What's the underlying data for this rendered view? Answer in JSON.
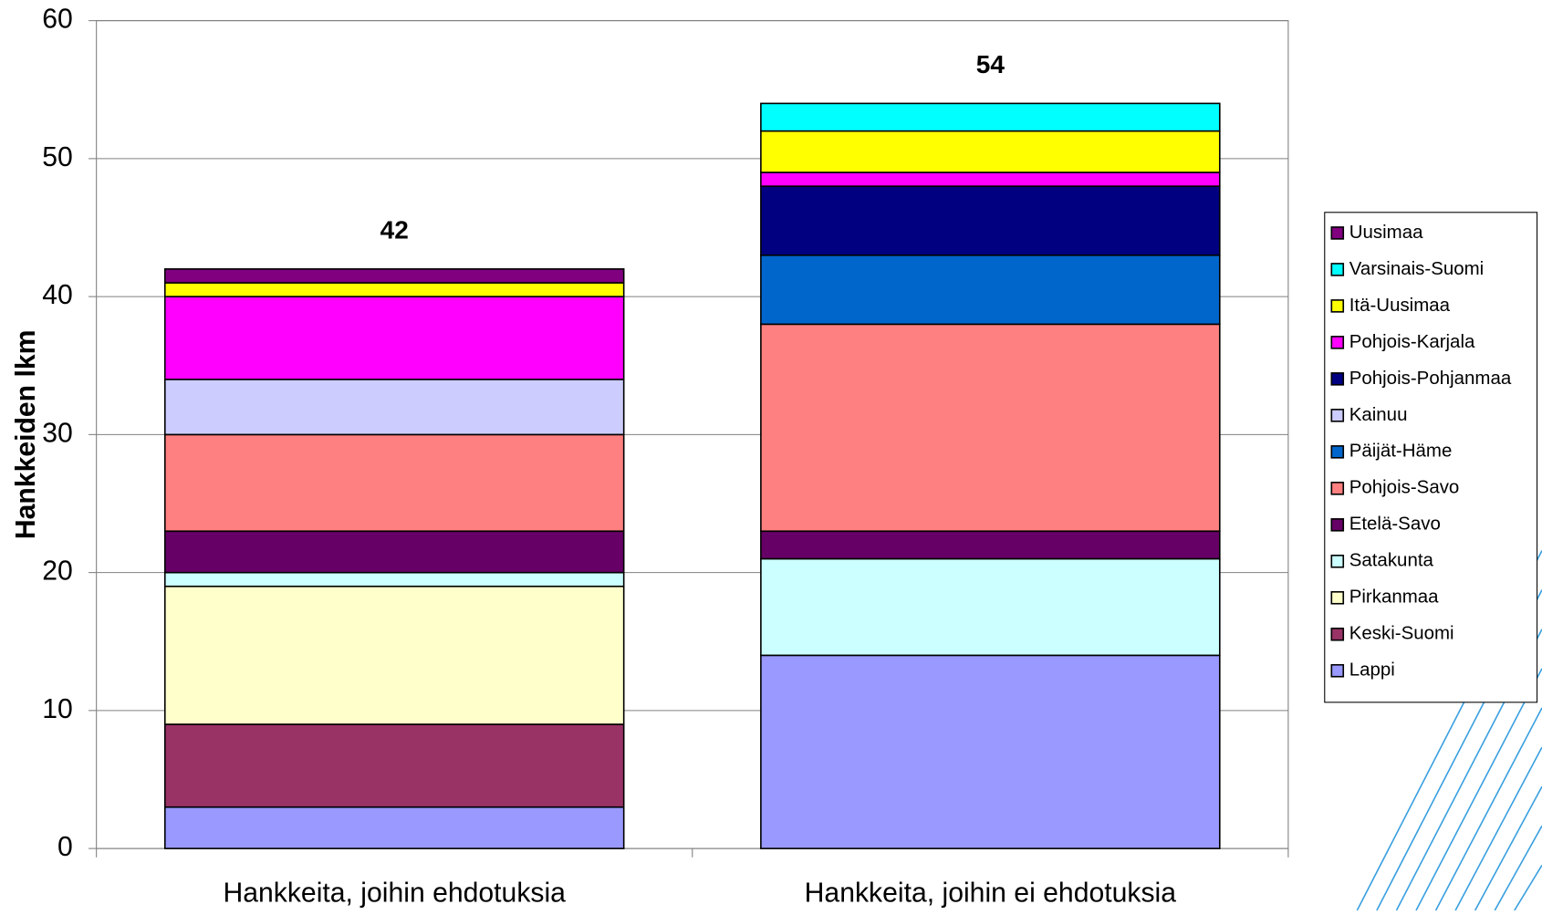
{
  "chart_data": {
    "type": "stacked_bar",
    "y_label": "Hankkeiden lkm",
    "categories": [
      "Hankkeita, joihin ehdotuksia",
      "Hankkeita, joihin ei ehdotuksia"
    ],
    "totals": [
      42,
      54
    ],
    "ylim": [
      0,
      60
    ],
    "yticks": [
      0,
      10,
      20,
      30,
      40,
      50,
      60
    ],
    "grid": true,
    "legend": "right",
    "series": [
      {
        "name": "Lappi",
        "color": "#9999ff",
        "values": [
          3,
          14
        ]
      },
      {
        "name": "Keski-Suomi",
        "color": "#993366",
        "values": [
          6,
          0
        ]
      },
      {
        "name": "Pirkanmaa",
        "color": "#ffffcc",
        "values": [
          10,
          0
        ]
      },
      {
        "name": "Satakunta",
        "color": "#ccffff",
        "values": [
          1,
          7
        ]
      },
      {
        "name": "Etelä-Savo",
        "color": "#660066",
        "values": [
          3,
          2
        ]
      },
      {
        "name": "Pohjois-Savo",
        "color": "#ff8080",
        "values": [
          7,
          15
        ]
      },
      {
        "name": "Päijät-Häme",
        "color": "#0066cc",
        "values": [
          0,
          5
        ]
      },
      {
        "name": "Kainuu",
        "color": "#ccccff",
        "values": [
          4,
          0
        ]
      },
      {
        "name": "Pohjois-Pohjanmaa",
        "color": "#000080",
        "values": [
          0,
          5
        ]
      },
      {
        "name": "Pohjois-Karjala",
        "color": "#ff00ff",
        "values": [
          6,
          1
        ]
      },
      {
        "name": "Itä-Uusimaa",
        "color": "#ffff00",
        "values": [
          1,
          3
        ]
      },
      {
        "name": "Varsinais-Suomi",
        "color": "#00ffff",
        "values": [
          0,
          2
        ]
      },
      {
        "name": "Uusimaa",
        "color": "#800080",
        "values": [
          1,
          0
        ]
      }
    ]
  }
}
